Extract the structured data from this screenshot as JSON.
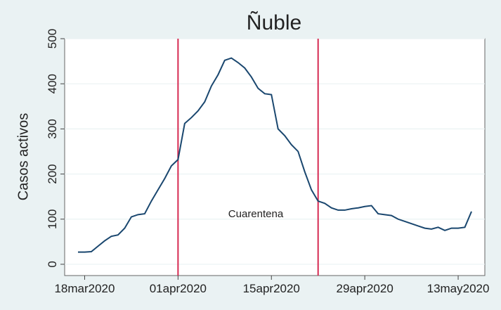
{
  "chart_data": {
    "type": "line",
    "title": "Ñuble",
    "ylabel": "Casos activos",
    "annotation": "Cuarentena",
    "x": [
      "2020-03-17",
      "2020-03-18",
      "2020-03-19",
      "2020-03-20",
      "2020-03-21",
      "2020-03-22",
      "2020-03-23",
      "2020-03-24",
      "2020-03-25",
      "2020-03-26",
      "2020-03-27",
      "2020-03-28",
      "2020-03-29",
      "2020-03-30",
      "2020-03-31",
      "2020-04-01",
      "2020-04-02",
      "2020-04-03",
      "2020-04-04",
      "2020-04-05",
      "2020-04-06",
      "2020-04-07",
      "2020-04-08",
      "2020-04-09",
      "2020-04-10",
      "2020-04-11",
      "2020-04-12",
      "2020-04-13",
      "2020-04-14",
      "2020-04-15",
      "2020-04-16",
      "2020-04-17",
      "2020-04-18",
      "2020-04-19",
      "2020-04-20",
      "2020-04-21",
      "2020-04-22",
      "2020-04-23",
      "2020-04-24",
      "2020-04-25",
      "2020-04-26",
      "2020-04-27",
      "2020-04-28",
      "2020-04-29",
      "2020-04-30",
      "2020-05-01",
      "2020-05-02",
      "2020-05-03",
      "2020-05-04",
      "2020-05-05",
      "2020-05-06",
      "2020-05-07",
      "2020-05-08",
      "2020-05-09",
      "2020-05-10",
      "2020-05-11",
      "2020-05-12",
      "2020-05-13",
      "2020-05-14",
      "2020-05-15"
    ],
    "series": [
      {
        "name": "Casos activos",
        "color": "#1a476f",
        "values": [
          27,
          27,
          28,
          40,
          52,
          62,
          65,
          80,
          105,
          110,
          112,
          140,
          165,
          190,
          218,
          232,
          312,
          325,
          340,
          360,
          395,
          420,
          452,
          457,
          447,
          435,
          415,
          390,
          378,
          376,
          300,
          285,
          265,
          250,
          205,
          165,
          140,
          135,
          125,
          120,
          120,
          123,
          125,
          128,
          130,
          112,
          110,
          108,
          100,
          95,
          90,
          85,
          80,
          78,
          82,
          75,
          80,
          80,
          82,
          117
        ]
      }
    ],
    "vlines": [
      "2020-04-01",
      "2020-04-22"
    ],
    "vline_color": "#d62a52",
    "xlim": [
      "2020-03-15",
      "2020-05-17"
    ],
    "xticks": [
      {
        "value": "2020-03-18",
        "label": "18mar2020"
      },
      {
        "value": "2020-04-01",
        "label": "01apr2020"
      },
      {
        "value": "2020-04-15",
        "label": "15apr2020"
      },
      {
        "value": "2020-04-29",
        "label": "29apr2020"
      },
      {
        "value": "2020-05-13",
        "label": "13may2020"
      }
    ],
    "ylim": [
      -25,
      500
    ],
    "yticks": [
      0,
      100,
      200,
      300,
      400,
      500
    ],
    "grid": true
  }
}
